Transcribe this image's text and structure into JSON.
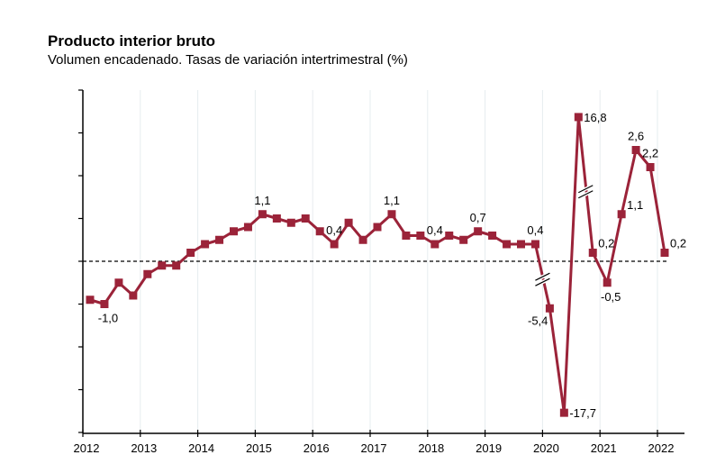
{
  "chart_data": {
    "type": "line",
    "title": "Producto interior bruto",
    "subtitle": "Volumen encadenado. Tasas de variación intertrimestral (%)",
    "xlabel": "",
    "ylabel": "",
    "x_tick_labels": [
      "2012",
      "2013",
      "2014",
      "2015",
      "2016",
      "2017",
      "2018",
      "2019",
      "2020",
      "2021",
      "2022"
    ],
    "x": [
      "2012T1",
      "2012T2",
      "2012T3",
      "2012T4",
      "2013T1",
      "2013T2",
      "2013T3",
      "2013T4",
      "2014T1",
      "2014T2",
      "2014T3",
      "2014T4",
      "2015T1",
      "2015T2",
      "2015T3",
      "2015T4",
      "2016T1",
      "2016T2",
      "2016T3",
      "2016T4",
      "2017T1",
      "2017T2",
      "2017T3",
      "2017T4",
      "2018T1",
      "2018T2",
      "2018T3",
      "2018T4",
      "2019T1",
      "2019T2",
      "2019T3",
      "2019T4",
      "2020T1",
      "2020T2",
      "2020T3",
      "2020T4",
      "2021T1",
      "2021T2",
      "2021T3",
      "2021T4",
      "2022T1"
    ],
    "values": [
      -0.9,
      -1.0,
      -0.5,
      -0.8,
      -0.3,
      -0.1,
      -0.1,
      0.2,
      0.4,
      0.5,
      0.7,
      0.8,
      1.1,
      1.0,
      0.9,
      1.0,
      0.7,
      0.4,
      0.9,
      0.5,
      0.8,
      1.1,
      0.6,
      0.6,
      0.4,
      0.6,
      0.5,
      0.7,
      0.6,
      0.4,
      0.4,
      0.4,
      -5.4,
      -17.7,
      16.8,
      0.2,
      -0.5,
      1.1,
      2.6,
      2.2,
      0.2
    ],
    "data_labels": [
      {
        "index": 1,
        "text": "-1,0",
        "pos": "below"
      },
      {
        "index": 12,
        "text": "1,1",
        "pos": "above"
      },
      {
        "index": 17,
        "text": "0,4",
        "pos": "above"
      },
      {
        "index": 21,
        "text": "1,1",
        "pos": "above"
      },
      {
        "index": 24,
        "text": "0,4",
        "pos": "above"
      },
      {
        "index": 27,
        "text": "0,7",
        "pos": "above"
      },
      {
        "index": 31,
        "text": "0,4",
        "pos": "above"
      },
      {
        "index": 32,
        "text": "-5,4",
        "pos": "left-below"
      },
      {
        "index": 33,
        "text": "-17,7",
        "pos": "right"
      },
      {
        "index": 34,
        "text": "16,8",
        "pos": "right"
      },
      {
        "index": 35,
        "text": "0,2",
        "pos": "right-up"
      },
      {
        "index": 36,
        "text": "-0,5",
        "pos": "below"
      },
      {
        "index": 37,
        "text": "1,1",
        "pos": "right-up"
      },
      {
        "index": 38,
        "text": "2,6",
        "pos": "above"
      },
      {
        "index": 39,
        "text": "2,2",
        "pos": "above"
      },
      {
        "index": 40,
        "text": "0,2",
        "pos": "right-up"
      }
    ],
    "ylim": [
      -4,
      4
    ],
    "y_tick_step": 1,
    "y_tick_labels_shown": false,
    "axis_breaks": true,
    "reference_line": 0,
    "grid": "vertical",
    "legend": "none",
    "colors": {
      "series": "#9b2339",
      "grid": "#e6ecef",
      "axis": "#000000"
    }
  }
}
